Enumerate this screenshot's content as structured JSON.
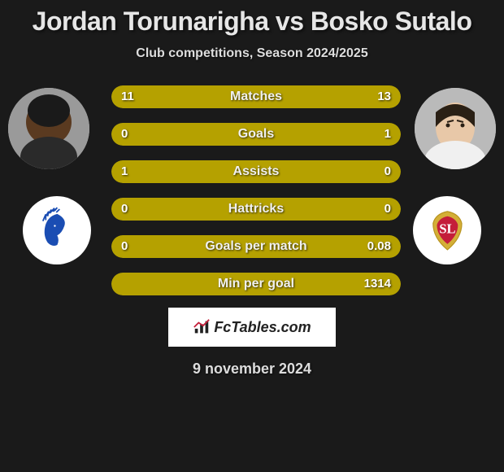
{
  "header": {
    "title": "Jordan Torunarigha vs Bosko Sutalo",
    "subtitle": "Club competitions, Season 2024/2025"
  },
  "player_left": {
    "name": "Jordan Torunarigha",
    "avatar_bg": "#8a6a4a",
    "club_icon": "indian-head",
    "club_color": "#1a4db3"
  },
  "player_right": {
    "name": "Bosko Sutalo",
    "avatar_bg": "#d8c8b8",
    "club_icon": "standard-crest",
    "club_color": "#d4af37"
  },
  "stats": [
    {
      "label": "Matches",
      "left_val": "11",
      "right_val": "13",
      "left_pct": 46,
      "right_pct": 54,
      "style": "split"
    },
    {
      "label": "Goals",
      "left_val": "0",
      "right_val": "1",
      "left_pct": 0,
      "right_pct": 100,
      "style": "right"
    },
    {
      "label": "Assists",
      "left_val": "1",
      "right_val": "0",
      "left_pct": 100,
      "right_pct": 0,
      "style": "left"
    },
    {
      "label": "Hattricks",
      "left_val": "0",
      "right_val": "0",
      "left_pct": 0,
      "right_pct": 0,
      "style": "full"
    },
    {
      "label": "Goals per match",
      "left_val": "0",
      "right_val": "0.08",
      "left_pct": 0,
      "right_pct": 100,
      "style": "right"
    },
    {
      "label": "Min per goal",
      "left_val": "",
      "right_val": "1314",
      "left_pct": 0,
      "right_pct": 100,
      "style": "right"
    }
  ],
  "watermark": "FcTables.com",
  "date": "9 november 2024",
  "colors": {
    "bar_fill": "#b5a100",
    "bar_bg": "#3a3a15",
    "page_bg": "#1a1a1a",
    "title": "#e6e6e6"
  }
}
